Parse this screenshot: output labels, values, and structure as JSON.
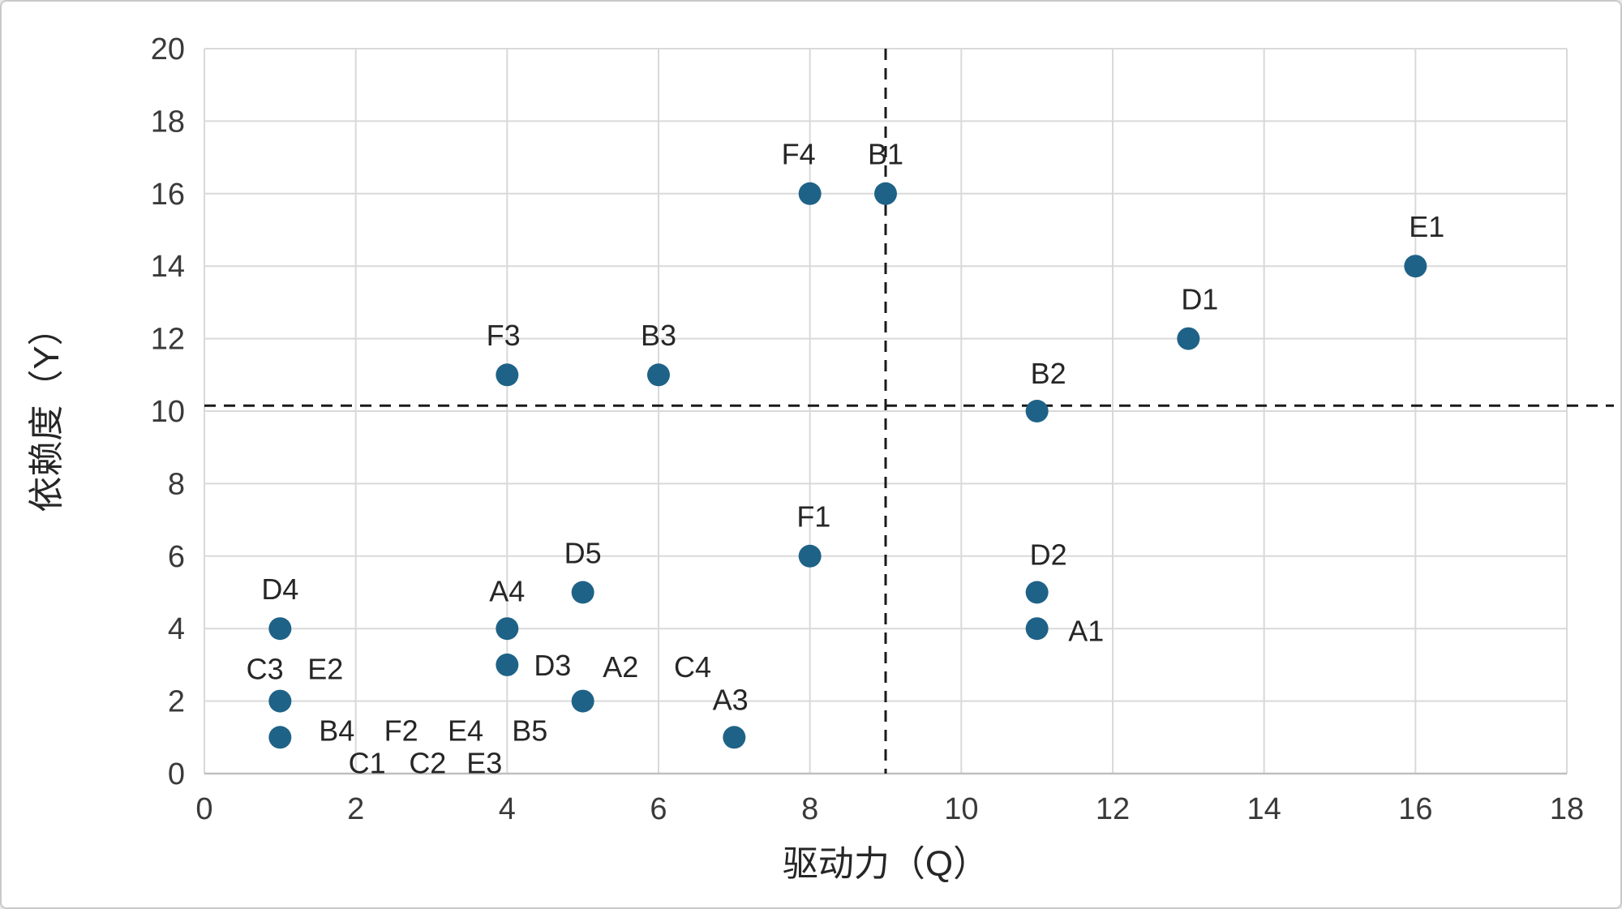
{
  "figure": {
    "background": "#ffffff",
    "border_color": "#c9c9c9"
  },
  "chart_data": {
    "type": "scatter",
    "title": "",
    "xlabel": "驱动力（Q）",
    "ylabel": "依赖度（Y）",
    "xlim": [
      0,
      18
    ],
    "ylim": [
      0,
      20
    ],
    "xticks": [
      0,
      2,
      4,
      6,
      8,
      10,
      12,
      14,
      16,
      18
    ],
    "yticks": [
      0,
      2,
      4,
      6,
      8,
      10,
      12,
      14,
      16,
      18,
      20
    ],
    "grid": true,
    "legend_position": "none",
    "marker_color": "#1F6287",
    "grid_color": "#D9D9D9",
    "axis_line_color": "#BFBFBF",
    "reference_lines": {
      "style": "dashed",
      "color": "#1a1a1a",
      "vertical_x": 9,
      "horizontal_y": 10.15
    },
    "points": [
      {
        "label": "A1",
        "x": 11,
        "y": 4,
        "marker_visible": true,
        "label_x": 11.65,
        "label_y": 3.95
      },
      {
        "label": "A2",
        "x": 5,
        "y": 2,
        "marker_visible": true,
        "label_x": 5.5,
        "label_y": 2.95
      },
      {
        "label": "A3",
        "x": 7,
        "y": 1,
        "marker_visible": true,
        "label_x": 6.95,
        "label_y": 2.05
      },
      {
        "label": "A4",
        "x": 4,
        "y": 4,
        "marker_visible": true,
        "label_x": 4.0,
        "label_y": 5.05
      },
      {
        "label": "B1",
        "x": 9,
        "y": 16,
        "marker_visible": true,
        "label_x": 9.0,
        "label_y": 17.1
      },
      {
        "label": "B2",
        "x": 11,
        "y": 10,
        "marker_visible": true,
        "label_x": 11.15,
        "label_y": 11.05
      },
      {
        "label": "B3",
        "x": 6,
        "y": 11,
        "marker_visible": true,
        "label_x": 6.0,
        "label_y": 12.1
      },
      {
        "label": "B4",
        "x": 1,
        "y": 1,
        "marker_visible": true,
        "label_x": 1.75,
        "label_y": 1.2
      },
      {
        "label": "B5",
        "x": 4,
        "y": 1,
        "marker_visible": false,
        "label_x": 4.3,
        "label_y": 1.2
      },
      {
        "label": "C1",
        "x": 2,
        "y": 0,
        "marker_visible": false,
        "label_x": 2.15,
        "label_y": 0.3
      },
      {
        "label": "C2",
        "x": 3,
        "y": 0,
        "marker_visible": false,
        "label_x": 2.95,
        "label_y": 0.3
      },
      {
        "label": "C3",
        "x": 1,
        "y": 2,
        "marker_visible": true,
        "label_x": 0.8,
        "label_y": 2.9
      },
      {
        "label": "C4",
        "x": 6,
        "y": 2,
        "marker_visible": false,
        "label_x": 6.45,
        "label_y": 2.95
      },
      {
        "label": "D1",
        "x": 13,
        "y": 12,
        "marker_visible": true,
        "label_x": 13.15,
        "label_y": 13.1
      },
      {
        "label": "D2",
        "x": 11,
        "y": 5,
        "marker_visible": true,
        "label_x": 11.15,
        "label_y": 6.05
      },
      {
        "label": "D3",
        "x": 4,
        "y": 3,
        "marker_visible": true,
        "label_x": 4.6,
        "label_y": 3.0
      },
      {
        "label": "D4",
        "x": 1,
        "y": 4,
        "marker_visible": true,
        "label_x": 1.0,
        "label_y": 5.1
      },
      {
        "label": "D5",
        "x": 5,
        "y": 5,
        "marker_visible": true,
        "label_x": 5.0,
        "label_y": 6.1
      },
      {
        "label": "E1",
        "x": 16,
        "y": 14,
        "marker_visible": true,
        "label_x": 16.15,
        "label_y": 15.1
      },
      {
        "label": "E2",
        "x": 1,
        "y": 2,
        "marker_visible": false,
        "label_x": 1.6,
        "label_y": 2.9
      },
      {
        "label": "E3",
        "x": 4,
        "y": 0,
        "marker_visible": false,
        "label_x": 3.7,
        "label_y": 0.3
      },
      {
        "label": "E4",
        "x": 3,
        "y": 1,
        "marker_visible": false,
        "label_x": 3.45,
        "label_y": 1.2
      },
      {
        "label": "F1",
        "x": 8,
        "y": 6,
        "marker_visible": true,
        "label_x": 8.05,
        "label_y": 7.1
      },
      {
        "label": "F2",
        "x": 2,
        "y": 1,
        "marker_visible": false,
        "label_x": 2.6,
        "label_y": 1.2
      },
      {
        "label": "F3",
        "x": 4,
        "y": 11,
        "marker_visible": true,
        "label_x": 3.95,
        "label_y": 12.1
      },
      {
        "label": "F4",
        "x": 8,
        "y": 16,
        "marker_visible": true,
        "label_x": 7.85,
        "label_y": 17.1
      }
    ]
  }
}
